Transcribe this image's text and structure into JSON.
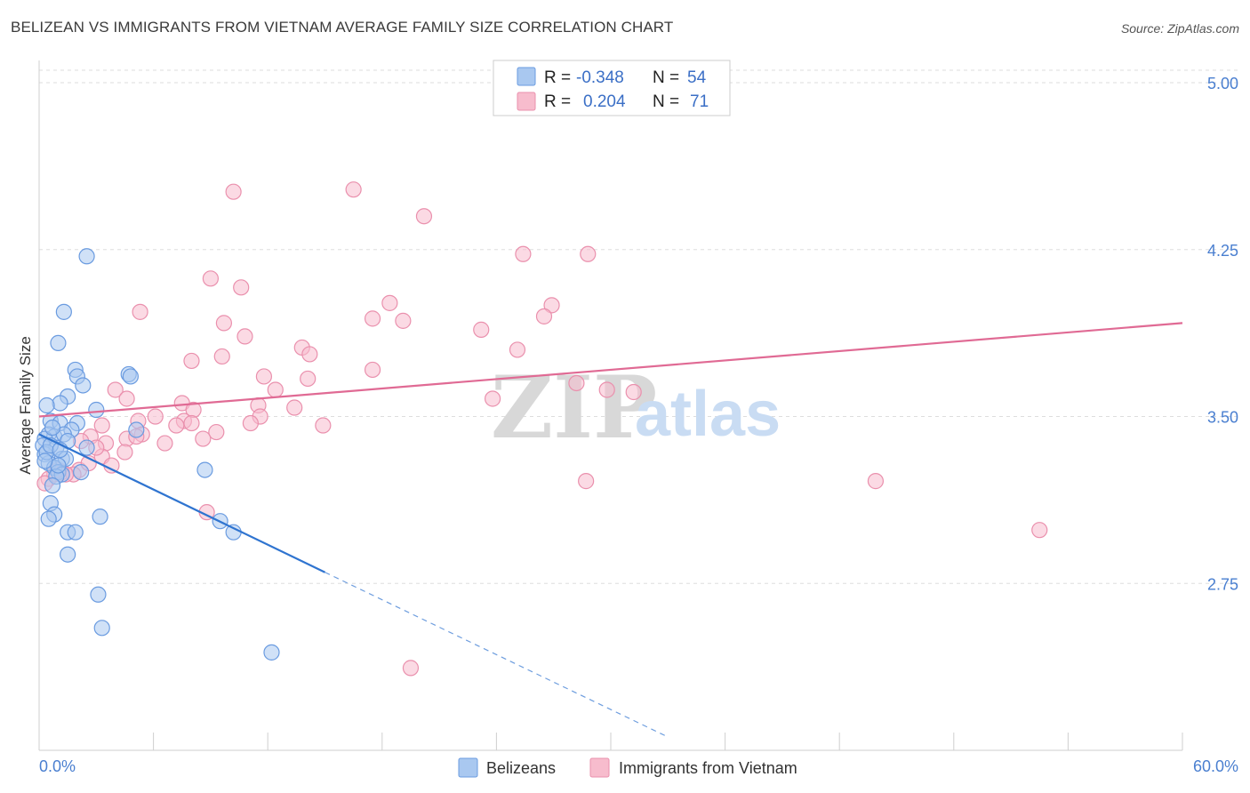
{
  "title": "BELIZEAN VS IMMIGRANTS FROM VIETNAM AVERAGE FAMILY SIZE CORRELATION CHART",
  "source": "Source: ZipAtlas.com",
  "watermark": {
    "zip": "ZIP",
    "atlas": "atlas"
  },
  "colors": {
    "blue_fill": "#a9c8f0",
    "blue_stroke": "#6a9be0",
    "blue_line": "#2f74d0",
    "pink_fill": "#f7bccd",
    "pink_stroke": "#ea90ad",
    "pink_line": "#e06a94",
    "grid": "#dddddd",
    "axis_label": "#4a7fd0"
  },
  "legend": {
    "rows": [
      {
        "r_label": "R =",
        "r_value": "-0.348",
        "n_label": "N =",
        "n_value": "54"
      },
      {
        "r_label": "R =",
        "r_value": "0.204",
        "n_label": "N =",
        "n_value": "71"
      }
    ]
  },
  "bottom_legend": [
    "Belizeans",
    "Immigrants from Vietnam"
  ],
  "chart_data": {
    "type": "scatter",
    "ylabel": "Average Family Size",
    "xlim": [
      0,
      60
    ],
    "ylim": [
      2.0,
      5.1
    ],
    "y_ticks": [
      2.75,
      3.5,
      4.25,
      5.0
    ],
    "y_tick_labels": [
      "2.75",
      "3.50",
      "4.25",
      "5.00"
    ],
    "x_tick_labels": [
      "0.0%",
      "60.0%"
    ],
    "grid": true,
    "series": [
      {
        "name": "Belizeans",
        "r": -0.348,
        "n": 54,
        "trend": {
          "x0": 0,
          "y0": 3.42,
          "x1": 15,
          "y1": 2.8,
          "dash_to_x": 33,
          "dash_to_y": 2.06
        },
        "points": [
          [
            2.5,
            4.22
          ],
          [
            1.3,
            3.97
          ],
          [
            1.0,
            3.83
          ],
          [
            1.9,
            3.71
          ],
          [
            2.0,
            3.68
          ],
          [
            2.3,
            3.64
          ],
          [
            4.7,
            3.69
          ],
          [
            4.8,
            3.68
          ],
          [
            1.5,
            3.59
          ],
          [
            1.1,
            3.56
          ],
          [
            0.4,
            3.55
          ],
          [
            3.0,
            3.53
          ],
          [
            0.6,
            3.48
          ],
          [
            1.1,
            3.47
          ],
          [
            2.0,
            3.47
          ],
          [
            1.7,
            3.44
          ],
          [
            5.1,
            3.44
          ],
          [
            0.5,
            3.42
          ],
          [
            0.8,
            3.41
          ],
          [
            1.3,
            3.42
          ],
          [
            0.3,
            3.4
          ],
          [
            1.5,
            3.39
          ],
          [
            0.2,
            3.37
          ],
          [
            0.9,
            3.36
          ],
          [
            2.5,
            3.36
          ],
          [
            0.3,
            3.33
          ],
          [
            1.2,
            3.31
          ],
          [
            1.4,
            3.31
          ],
          [
            0.5,
            3.29
          ],
          [
            0.8,
            3.27
          ],
          [
            1.0,
            3.25
          ],
          [
            1.2,
            3.24
          ],
          [
            0.9,
            3.23
          ],
          [
            2.2,
            3.25
          ],
          [
            8.7,
            3.26
          ],
          [
            0.7,
            3.19
          ],
          [
            0.6,
            3.11
          ],
          [
            0.8,
            3.06
          ],
          [
            3.2,
            3.05
          ],
          [
            0.5,
            3.04
          ],
          [
            1.5,
            2.98
          ],
          [
            1.9,
            2.98
          ],
          [
            9.5,
            3.03
          ],
          [
            10.2,
            2.98
          ],
          [
            1.5,
            2.88
          ],
          [
            3.1,
            2.7
          ],
          [
            3.3,
            2.55
          ],
          [
            12.2,
            2.44
          ],
          [
            0.4,
            3.34
          ],
          [
            1.0,
            3.28
          ],
          [
            0.3,
            3.3
          ],
          [
            0.6,
            3.37
          ],
          [
            1.1,
            3.35
          ],
          [
            0.7,
            3.45
          ]
        ]
      },
      {
        "name": "Immigrants from Vietnam",
        "r": 0.204,
        "n": 71,
        "trend": {
          "x0": 0,
          "y0": 3.5,
          "x1": 60,
          "y1": 3.92
        },
        "points": [
          [
            16.5,
            4.52
          ],
          [
            10.2,
            4.51
          ],
          [
            20.2,
            4.4
          ],
          [
            25.4,
            4.23
          ],
          [
            28.8,
            4.23
          ],
          [
            9.0,
            4.12
          ],
          [
            10.6,
            4.08
          ],
          [
            18.4,
            4.01
          ],
          [
            26.9,
            4.0
          ],
          [
            5.3,
            3.97
          ],
          [
            17.5,
            3.94
          ],
          [
            19.1,
            3.93
          ],
          [
            9.7,
            3.92
          ],
          [
            26.5,
            3.95
          ],
          [
            23.2,
            3.89
          ],
          [
            10.8,
            3.86
          ],
          [
            13.8,
            3.81
          ],
          [
            14.2,
            3.78
          ],
          [
            25.1,
            3.8
          ],
          [
            9.6,
            3.77
          ],
          [
            8.0,
            3.75
          ],
          [
            17.5,
            3.71
          ],
          [
            11.8,
            3.68
          ],
          [
            14.1,
            3.67
          ],
          [
            28.2,
            3.65
          ],
          [
            29.8,
            3.62
          ],
          [
            4.0,
            3.62
          ],
          [
            12.4,
            3.62
          ],
          [
            31.2,
            3.61
          ],
          [
            23.8,
            3.58
          ],
          [
            4.6,
            3.58
          ],
          [
            7.5,
            3.56
          ],
          [
            11.5,
            3.55
          ],
          [
            13.4,
            3.54
          ],
          [
            8.1,
            3.53
          ],
          [
            6.1,
            3.5
          ],
          [
            11.6,
            3.5
          ],
          [
            5.2,
            3.48
          ],
          [
            7.6,
            3.48
          ],
          [
            8.0,
            3.47
          ],
          [
            11.1,
            3.47
          ],
          [
            7.2,
            3.46
          ],
          [
            3.3,
            3.46
          ],
          [
            14.9,
            3.46
          ],
          [
            9.3,
            3.43
          ],
          [
            5.4,
            3.42
          ],
          [
            2.7,
            3.41
          ],
          [
            4.6,
            3.4
          ],
          [
            8.6,
            3.4
          ],
          [
            5.1,
            3.41
          ],
          [
            2.2,
            3.39
          ],
          [
            6.6,
            3.38
          ],
          [
            3.5,
            3.38
          ],
          [
            4.5,
            3.34
          ],
          [
            3.3,
            3.32
          ],
          [
            3.8,
            3.28
          ],
          [
            2.1,
            3.26
          ],
          [
            1.2,
            3.25
          ],
          [
            1.8,
            3.24
          ],
          [
            0.8,
            3.24
          ],
          [
            1.4,
            3.24
          ],
          [
            0.5,
            3.22
          ],
          [
            43.9,
            3.21
          ],
          [
            28.7,
            3.21
          ],
          [
            8.8,
            3.07
          ],
          [
            52.5,
            2.99
          ],
          [
            19.5,
            2.37
          ],
          [
            0.3,
            3.2
          ],
          [
            1.0,
            3.26
          ],
          [
            2.6,
            3.29
          ],
          [
            3.0,
            3.36
          ]
        ]
      }
    ]
  }
}
